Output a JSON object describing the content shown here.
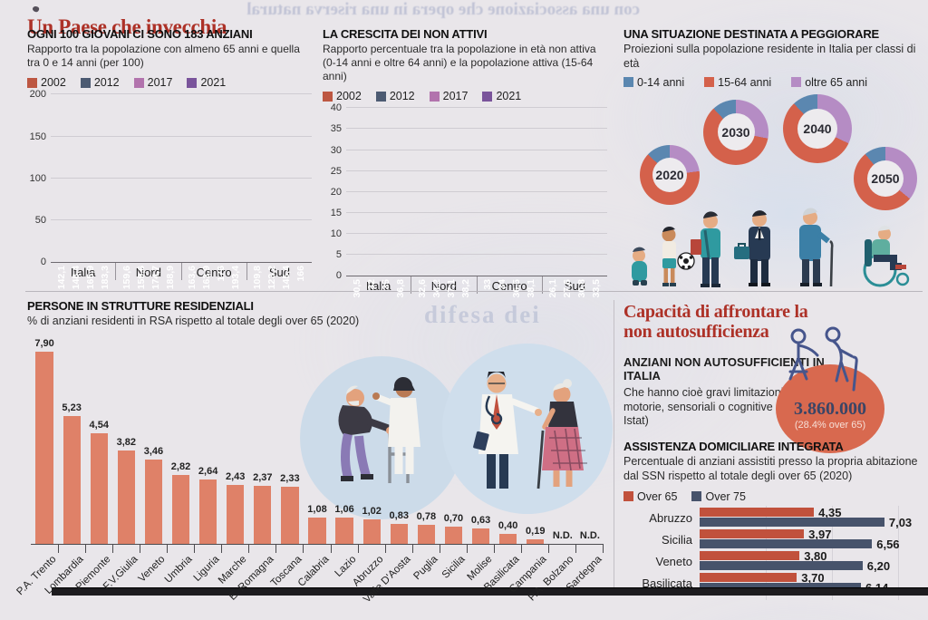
{
  "page": {
    "title": "Un Paese che invecchia",
    "bleed_text_top": "con una associazione che opera in una riserva natural",
    "bleed_text_mid": "difesa dei"
  },
  "colors": {
    "y2002": "#bd5742",
    "y2012": "#4c5a72",
    "y2017": "#b273ad",
    "y2021": "#7a549b",
    "age0_14": "#5b87b0",
    "age15_64": "#d4614b",
    "age65": "#b58cc4",
    "salmon": "#df8168",
    "over65": "#c1513c",
    "over75": "#47536b",
    "title_red": "#ad3127",
    "circle_red": "#d8694f"
  },
  "chart_data": [
    {
      "id": "anziani-per-100-giovani",
      "type": "bar",
      "title": "OGNI 100 GIOVANI CI SONO 183 ANZIANI",
      "subtitle": "Rapporto tra la popolazione con almeno 65 anni e quella tra 0 e 14 anni (per 100)",
      "categories": [
        "Italia",
        "Nord",
        "Centro",
        "Sud"
      ],
      "ylim": [
        0,
        200
      ],
      "yticks": [
        0,
        50,
        100,
        150,
        200
      ],
      "series": [
        {
          "name": "2002",
          "values": [
            142.1,
            159.6,
            163.6,
            109.8
          ],
          "labels": [
            "142,1",
            "159,6",
            "163,6",
            "109,8"
          ]
        },
        {
          "name": "2012",
          "values": [
            148.4,
            159.6,
            163.9,
            123.2
          ],
          "labels": [
            "148,4",
            "159,6",
            "163,9",
            "123,2"
          ]
        },
        {
          "name": "2017",
          "values": [
            165.9,
            174.7,
            176,
            145.4
          ],
          "labels": [
            "165,9",
            "174,7",
            "176",
            "145,4"
          ]
        },
        {
          "name": "2021",
          "values": [
            183.3,
            188.9,
            193.4,
            166
          ],
          "labels": [
            "183,3",
            "188,9",
            "193,4",
            "166"
          ]
        }
      ]
    },
    {
      "id": "crescita-non-attivi",
      "type": "bar",
      "title": "LA CRESCITA DEI NON ATTIVI",
      "subtitle": "Rapporto percentuale tra la popolazione in età non attiva (0-14 anni e oltre 64 anni) e la popolazione attiva (15-64 anni)",
      "categories": [
        "Italia",
        "Nord",
        "Centro",
        "Sud"
      ],
      "ylim": [
        0,
        40
      ],
      "yticks": [
        0,
        5,
        10,
        15,
        20,
        25,
        30,
        35,
        40
      ],
      "series": [
        {
          "name": "2002",
          "values": [
            30.5,
            32.6,
            33,
            26.1
          ],
          "labels": [
            "30,5",
            "32,6",
            "33",
            "26,1"
          ]
        },
        {
          "name": "2012",
          "values": [
            32,
            34.2,
            34,
            27.6
          ],
          "labels": [
            "32",
            "34,2",
            "34",
            "27,6"
          ]
        },
        {
          "name": "2017",
          "values": [
            35,
            37.1,
            36.5,
            30.8
          ],
          "labels": [
            "35",
            "37,1",
            "36,5",
            "30,8"
          ]
        },
        {
          "name": "2021",
          "values": [
            36.8,
            38.2,
            38.1,
            33.5
          ],
          "labels": [
            "36,8",
            "38,2",
            "38,1",
            "33,5"
          ]
        }
      ]
    },
    {
      "id": "proiezioni-popolazione",
      "type": "pie",
      "title": "UNA SITUAZIONE DESTINATA A PEGGIORARE",
      "subtitle": "Proiezioni sulla popolazione residente in Italia per classi di età",
      "legend": [
        "0-14 anni",
        "15-64 anni",
        "oltre 65 anni"
      ],
      "donuts": [
        {
          "year": "2020",
          "oltre_65": 23,
          "anni_15_64": 64,
          "anni_0_14": 13
        },
        {
          "year": "2030",
          "oltre_65": 28,
          "anni_15_64": 60,
          "anni_0_14": 12
        },
        {
          "year": "2040",
          "oltre_65": 32,
          "anni_15_64": 56,
          "anni_0_14": 12
        },
        {
          "year": "2050",
          "oltre_65": 36,
          "anni_15_64": 53,
          "anni_0_14": 11
        }
      ]
    },
    {
      "id": "persone-in-rsa",
      "type": "bar",
      "title": "PERSONE IN STRUTTURE RESIDENZIALI",
      "subtitle": "% di anziani residenti in RSA rispetto al totale degli over 65 (2020)",
      "ylim": [
        0,
        8
      ],
      "categories": [
        "P.A. Trento",
        "Lombardia",
        "Piemonte",
        "F.V.Giulia",
        "Veneto",
        "Umbria",
        "Liguria",
        "Marche",
        "E. Romagna",
        "Toscana",
        "Calabria",
        "Lazio",
        "Abruzzo",
        "Valle D'Aosta",
        "Puglia",
        "Sicilia",
        "Molise",
        "Basilicata",
        "Campania",
        "P.A. Bolzano",
        "Sardegna"
      ],
      "values": [
        7.9,
        5.23,
        4.54,
        3.82,
        3.46,
        2.82,
        2.64,
        2.43,
        2.37,
        2.33,
        1.08,
        1.06,
        1.02,
        0.83,
        0.78,
        0.7,
        0.63,
        0.4,
        0.19,
        null,
        null
      ],
      "labels": [
        "7,90",
        "5,23",
        "4,54",
        "3,82",
        "3,46",
        "2,82",
        "2,64",
        "2,43",
        "2,37",
        "2,33",
        "1,08",
        "1,06",
        "1,02",
        "0,83",
        "0,78",
        "0,70",
        "0,63",
        "0,40",
        "0,19",
        "N.D.",
        "N.D."
      ]
    },
    {
      "id": "assistenza-domiciliare",
      "type": "bar-horizontal",
      "title": "ASSISTENZA DOMICILIARE INTEGRATA",
      "subtitle": "Percentuale di anziani assistiti presso la propria abitazione dal SSN rispetto al totale degli over 65 (2020)",
      "legend": [
        "Over 65",
        "Over 75"
      ],
      "categories": [
        "Abruzzo",
        "Sicilia",
        "Veneto",
        "Basilicata"
      ],
      "series": [
        {
          "name": "Over 65",
          "values": [
            4.35,
            3.97,
            3.8,
            3.7
          ],
          "labels": [
            "4,35",
            "3,97",
            "3,80",
            "3,70"
          ]
        },
        {
          "name": "Over 75",
          "values": [
            7.03,
            6.56,
            6.2,
            6.14
          ],
          "labels": [
            "7,03",
            "6,56",
            "6,20",
            "6,14"
          ]
        }
      ]
    }
  ],
  "capacity_panel": {
    "title": "Capacità di affrontare la non autosufficienza",
    "block_heading": "ANZIANI NON AUTOSUFFICIENTI IN ITALIA",
    "block_text": "Che hanno cioè gravi limitazioni motorie, sensoriali o cognitive (2019, Istat)",
    "big_number": "3.860.000",
    "big_number_sub": "(28.4% over 65)"
  }
}
